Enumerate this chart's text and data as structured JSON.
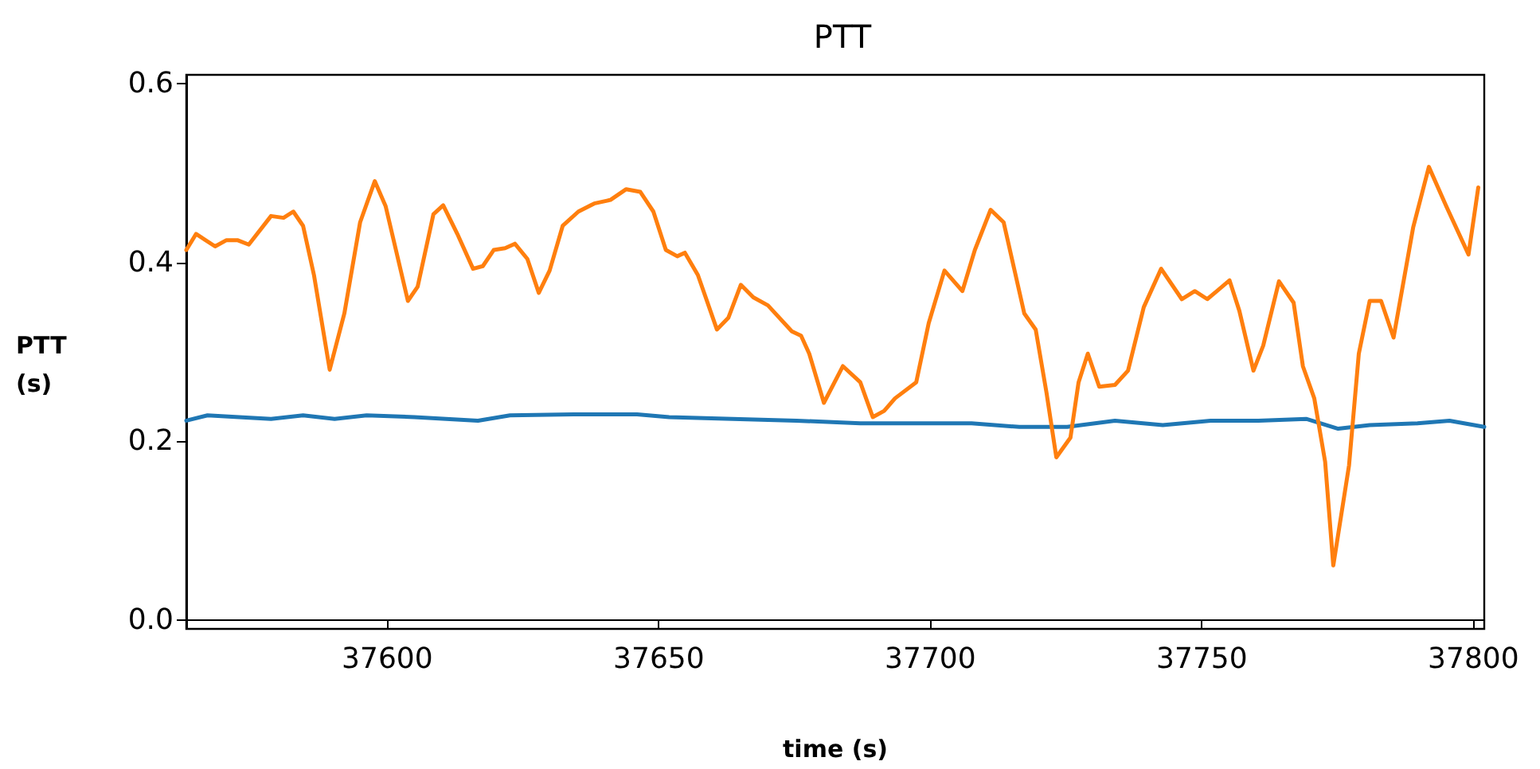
{
  "chart_data": {
    "type": "line",
    "title": "PTT",
    "xlabel": "time (s)",
    "ylabel": "PTT\n(s)",
    "xlim": [
      37563,
      37802
    ],
    "xticks": [
      37600,
      37650,
      37700,
      37750,
      37800
    ],
    "ylim": [
      -0.01,
      0.61
    ],
    "yticks": [
      {
        "value": 0,
        "label": "0.0"
      },
      {
        "value": 0.2,
        "label": "0.2"
      },
      {
        "value": 0.4,
        "label": "0.4"
      },
      {
        "value": 0.6,
        "label": "0.6"
      }
    ],
    "marker": "none",
    "line_style": "solid",
    "series": [
      {
        "color": "#1f77b4",
        "x": [
          37563,
          37566.9,
          37572.7,
          37578.6,
          37584.5,
          37590.3,
          37596.2,
          37605,
          37616.7,
          37622.6,
          37634.3,
          37646,
          37651.9,
          37663.6,
          37675.4,
          37687.1,
          37698.8,
          37707.6,
          37716.4,
          37725.2,
          37734,
          37742.8,
          37751.6,
          37760.4,
          37769.2,
          37775.1,
          37780.9,
          37789.7,
          37795.6,
          37802
        ],
        "values": [
          0.223,
          0.229,
          0.227,
          0.225,
          0.229,
          0.225,
          0.229,
          0.227,
          0.223,
          0.229,
          0.23,
          0.23,
          0.227,
          0.225,
          0.223,
          0.22,
          0.22,
          0.22,
          0.216,
          0.216,
          0.223,
          0.218,
          0.223,
          0.223,
          0.225,
          0.214,
          0.218,
          0.22,
          0.223,
          0.216
        ]
      },
      {
        "color": "#ff7f0e",
        "x": [
          37563,
          37564.8,
          37568.3,
          37570.4,
          37572.4,
          37574.5,
          37578.6,
          37580.9,
          37582.7,
          37584.5,
          37586.5,
          37589.4,
          37592.1,
          37595,
          37597.7,
          37599.7,
          37603.8,
          37605.6,
          37608.5,
          37610.3,
          37612.9,
          37615.8,
          37617.6,
          37619.6,
          37621.7,
          37623.5,
          37625.8,
          37627.9,
          37629.9,
          37632.3,
          37635.2,
          37638.1,
          37641.1,
          37644,
          37646.6,
          37649,
          37651.3,
          37653.4,
          37654.8,
          37657.2,
          37660.7,
          37662.8,
          37665.1,
          37667.4,
          37670.1,
          37674.5,
          37676.2,
          37677.7,
          37680.4,
          37683.9,
          37687.1,
          37689.4,
          37691.5,
          37693.5,
          37697.4,
          37699.7,
          37702.6,
          37705.9,
          37708.2,
          37711.1,
          37713.5,
          37717.3,
          37719.4,
          37721.4,
          37723.2,
          37725.8,
          37727.3,
          37729,
          37731.1,
          37734,
          37736.4,
          37739.3,
          37742.5,
          37746.3,
          37748.7,
          37751,
          37755.1,
          37756.9,
          37759.5,
          37761.3,
          37764.2,
          37766.9,
          37768.6,
          37770.7,
          37772.7,
          37774.2,
          37777.1,
          37778.9,
          37780.9,
          37783,
          37785.3,
          37788.9,
          37791.8,
          37795,
          37799.1,
          37800.9
        ],
        "values": [
          0.414,
          0.432,
          0.418,
          0.425,
          0.425,
          0.42,
          0.452,
          0.45,
          0.457,
          0.441,
          0.386,
          0.28,
          0.343,
          0.445,
          0.491,
          0.463,
          0.357,
          0.373,
          0.454,
          0.464,
          0.432,
          0.393,
          0.396,
          0.414,
          0.416,
          0.421,
          0.404,
          0.366,
          0.391,
          0.441,
          0.457,
          0.466,
          0.47,
          0.482,
          0.479,
          0.457,
          0.414,
          0.407,
          0.411,
          0.386,
          0.325,
          0.338,
          0.375,
          0.361,
          0.352,
          0.323,
          0.318,
          0.298,
          0.243,
          0.284,
          0.266,
          0.227,
          0.234,
          0.248,
          0.266,
          0.332,
          0.391,
          0.368,
          0.414,
          0.459,
          0.445,
          0.343,
          0.325,
          0.254,
          0.182,
          0.204,
          0.266,
          0.298,
          0.261,
          0.263,
          0.279,
          0.35,
          0.393,
          0.359,
          0.368,
          0.359,
          0.38,
          0.346,
          0.279,
          0.307,
          0.379,
          0.355,
          0.284,
          0.248,
          0.177,
          0.061,
          0.173,
          0.298,
          0.357,
          0.357,
          0.316,
          0.439,
          0.507,
          0.463,
          0.409,
          0.484
        ]
      }
    ]
  }
}
